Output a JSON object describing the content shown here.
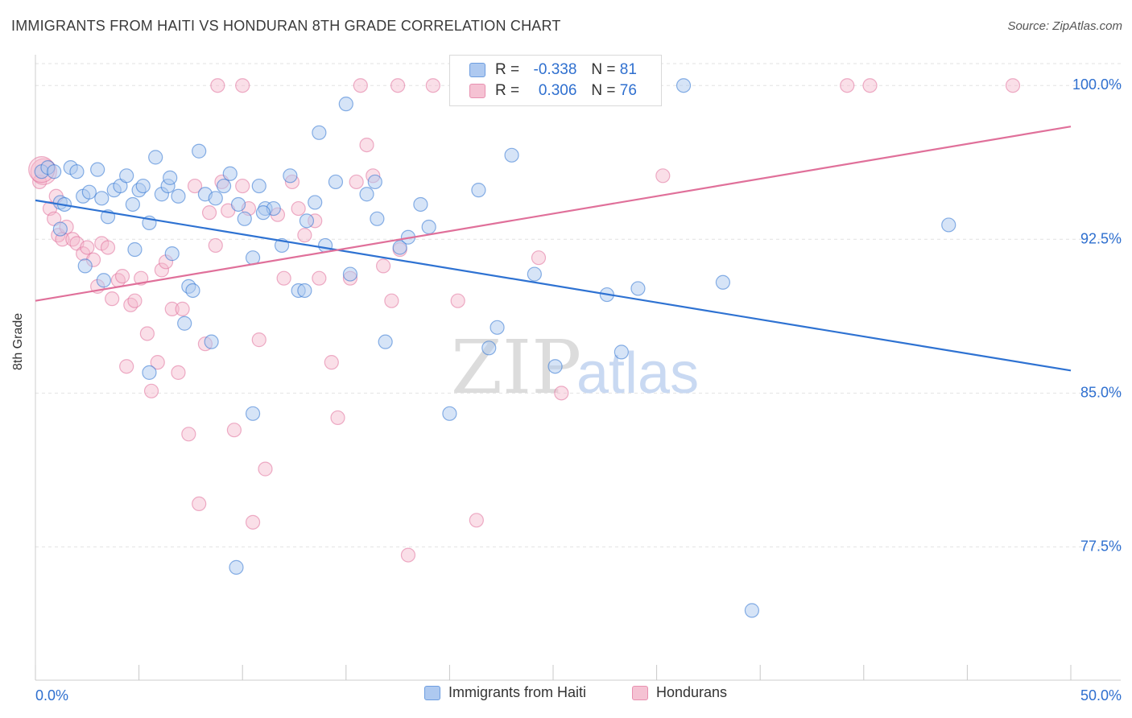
{
  "header": {
    "title": "IMMIGRANTS FROM HAITI VS HONDURAN 8TH GRADE CORRELATION CHART",
    "source": "Source: ZipAtlas.com"
  },
  "legend_top": {
    "rows": [
      {
        "r_label": "R =",
        "r_value": "-0.338",
        "n_label": "N =",
        "n_value": "81"
      },
      {
        "r_label": "R =",
        "r_value": "0.306",
        "n_label": "N =",
        "n_value": "76"
      }
    ]
  },
  "legend_bottom": {
    "items": [
      "Immigrants from Haiti",
      "Hondurans"
    ]
  },
  "watermark": {
    "zip": "ZIP",
    "atlas": "atlas"
  },
  "colors": {
    "blue": "#2e72d2",
    "blue_fill": "#aec9f0",
    "pink": "#e0709a",
    "pink_fill": "#f5b8cc",
    "axis_label": "#2e6fcf",
    "grid": "#e2e2e2"
  },
  "chart_data": {
    "type": "scatter",
    "title": "IMMIGRANTS FROM HAITI VS HONDURAN 8TH GRADE CORRELATION CHART",
    "xlabel": "",
    "ylabel": "8th Grade",
    "xlim": [
      0,
      50
    ],
    "ylim": [
      71.0,
      101.5
    ],
    "x_tick_labels": [
      "0.0%",
      "50.0%"
    ],
    "y_ticks": [
      77.5,
      85.0,
      92.5,
      100.0
    ],
    "y_tick_labels": [
      "77.5%",
      "85.0%",
      "92.5%",
      "100.0%"
    ],
    "grid": true,
    "legend_position": "top-center",
    "series": [
      {
        "name": "Immigrants from Haiti",
        "color": "#2e72d2",
        "trend": {
          "x0": 0,
          "y0": 94.4,
          "x1": 50,
          "y1": 86.1
        },
        "points": [
          [
            0.3,
            95.8
          ],
          [
            0.6,
            96.0
          ],
          [
            0.9,
            95.8
          ],
          [
            1.2,
            94.3
          ],
          [
            1.4,
            94.2
          ],
          [
            1.7,
            96.0
          ],
          [
            2.0,
            95.8
          ],
          [
            2.3,
            94.6
          ],
          [
            2.6,
            94.8
          ],
          [
            3.0,
            95.9
          ],
          [
            3.2,
            94.5
          ],
          [
            3.5,
            93.6
          ],
          [
            3.8,
            94.9
          ],
          [
            4.1,
            95.1
          ],
          [
            4.4,
            95.6
          ],
          [
            4.7,
            94.2
          ],
          [
            5.0,
            94.9
          ],
          [
            5.2,
            95.1
          ],
          [
            5.5,
            93.3
          ],
          [
            5.8,
            96.5
          ],
          [
            6.1,
            94.7
          ],
          [
            6.4,
            95.1
          ],
          [
            6.6,
            91.8
          ],
          [
            6.9,
            94.6
          ],
          [
            7.2,
            88.4
          ],
          [
            7.4,
            90.2
          ],
          [
            7.6,
            90.0
          ],
          [
            7.9,
            96.8
          ],
          [
            8.2,
            94.7
          ],
          [
            8.5,
            87.5
          ],
          [
            8.7,
            94.5
          ],
          [
            9.1,
            95.1
          ],
          [
            9.4,
            95.7
          ],
          [
            9.8,
            94.2
          ],
          [
            10.1,
            93.5
          ],
          [
            10.5,
            91.6
          ],
          [
            10.8,
            95.1
          ],
          [
            11.1,
            94.0
          ],
          [
            11.5,
            94.0
          ],
          [
            11.9,
            92.2
          ],
          [
            12.3,
            95.6
          ],
          [
            12.7,
            90.0
          ],
          [
            13.1,
            93.4
          ],
          [
            13.5,
            94.3
          ],
          [
            13.7,
            97.7
          ],
          [
            14.0,
            92.2
          ],
          [
            14.5,
            95.3
          ],
          [
            15.0,
            99.1
          ],
          [
            15.2,
            90.8
          ],
          [
            16.0,
            94.7
          ],
          [
            16.4,
            95.3
          ],
          [
            16.9,
            87.5
          ],
          [
            17.6,
            92.1
          ],
          [
            18.0,
            92.6
          ],
          [
            18.6,
            94.2
          ],
          [
            19.0,
            93.1
          ],
          [
            20.0,
            84.0
          ],
          [
            21.4,
            94.9
          ],
          [
            21.9,
            87.2
          ],
          [
            22.3,
            88.2
          ],
          [
            23.0,
            96.6
          ],
          [
            24.1,
            90.8
          ],
          [
            25.1,
            86.3
          ],
          [
            27.6,
            89.8
          ],
          [
            28.3,
            87.0
          ],
          [
            29.1,
            90.1
          ],
          [
            31.3,
            100.0
          ],
          [
            33.2,
            90.4
          ],
          [
            34.6,
            74.4
          ],
          [
            44.1,
            93.2
          ],
          [
            2.4,
            91.2
          ],
          [
            3.3,
            90.5
          ],
          [
            5.5,
            86.0
          ],
          [
            9.7,
            76.5
          ],
          [
            10.5,
            84.0
          ],
          [
            1.2,
            93.0
          ],
          [
            13.0,
            90.0
          ],
          [
            6.5,
            95.5
          ],
          [
            11.0,
            93.8
          ],
          [
            4.8,
            92.0
          ],
          [
            16.5,
            93.5
          ]
        ]
      },
      {
        "name": "Hondurans",
        "color": "#e0709a",
        "trend": {
          "x0": 0,
          "y0": 89.5,
          "x1": 50,
          "y1": 98.0
        },
        "points": [
          [
            0.2,
            95.3
          ],
          [
            0.4,
            95.8
          ],
          [
            0.7,
            94.0
          ],
          [
            0.9,
            93.5
          ],
          [
            1.1,
            92.7
          ],
          [
            1.3,
            92.5
          ],
          [
            1.5,
            93.1
          ],
          [
            1.8,
            92.5
          ],
          [
            2.0,
            92.3
          ],
          [
            2.3,
            91.8
          ],
          [
            2.5,
            92.1
          ],
          [
            2.8,
            91.5
          ],
          [
            3.0,
            90.2
          ],
          [
            3.2,
            92.3
          ],
          [
            3.5,
            92.1
          ],
          [
            3.7,
            89.6
          ],
          [
            4.0,
            90.5
          ],
          [
            4.2,
            90.7
          ],
          [
            4.4,
            86.3
          ],
          [
            4.6,
            89.3
          ],
          [
            4.8,
            89.5
          ],
          [
            5.1,
            90.6
          ],
          [
            5.4,
            87.9
          ],
          [
            5.6,
            85.1
          ],
          [
            5.9,
            86.5
          ],
          [
            6.1,
            91.0
          ],
          [
            6.3,
            91.4
          ],
          [
            6.6,
            89.1
          ],
          [
            6.9,
            86.0
          ],
          [
            7.1,
            89.1
          ],
          [
            7.4,
            83.0
          ],
          [
            7.7,
            95.1
          ],
          [
            7.9,
            79.6
          ],
          [
            8.2,
            87.4
          ],
          [
            8.4,
            93.8
          ],
          [
            8.7,
            92.2
          ],
          [
            9.0,
            95.3
          ],
          [
            9.3,
            93.9
          ],
          [
            9.6,
            83.2
          ],
          [
            10.0,
            95.1
          ],
          [
            10.3,
            94.0
          ],
          [
            10.5,
            78.7
          ],
          [
            10.8,
            87.6
          ],
          [
            11.1,
            81.3
          ],
          [
            11.7,
            93.7
          ],
          [
            12.0,
            90.6
          ],
          [
            12.4,
            95.3
          ],
          [
            12.7,
            94.0
          ],
          [
            13.0,
            92.7
          ],
          [
            13.5,
            93.4
          ],
          [
            13.7,
            90.6
          ],
          [
            14.3,
            86.5
          ],
          [
            14.6,
            83.8
          ],
          [
            15.2,
            90.6
          ],
          [
            15.5,
            95.3
          ],
          [
            16.0,
            97.1
          ],
          [
            16.3,
            95.6
          ],
          [
            16.8,
            91.2
          ],
          [
            17.2,
            89.5
          ],
          [
            17.6,
            92.0
          ],
          [
            18.0,
            77.1
          ],
          [
            19.2,
            100.0
          ],
          [
            20.4,
            89.5
          ],
          [
            21.3,
            78.8
          ],
          [
            24.3,
            91.6
          ],
          [
            25.4,
            85.0
          ],
          [
            30.3,
            95.6
          ],
          [
            39.2,
            100.0
          ],
          [
            40.3,
            100.0
          ],
          [
            47.2,
            100.0
          ],
          [
            8.8,
            100.0
          ],
          [
            10.0,
            100.0
          ],
          [
            15.7,
            100.0
          ],
          [
            17.5,
            100.0
          ],
          [
            0.3,
            95.9
          ],
          [
            1.0,
            94.6
          ]
        ]
      }
    ]
  }
}
